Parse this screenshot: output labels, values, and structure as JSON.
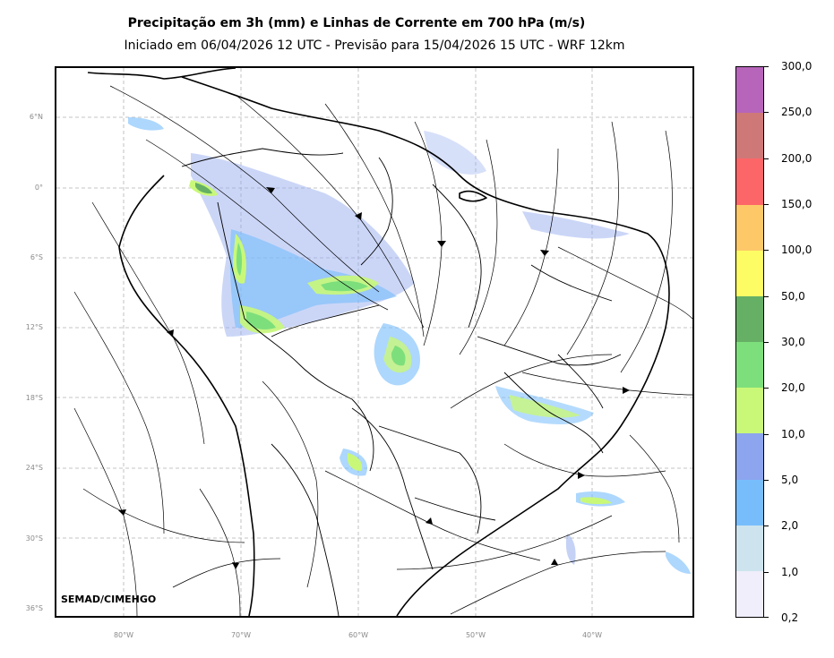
{
  "title": "Precipitação em 3h (mm) e Linhas de Corrente em 700 hPa (m/s)",
  "subtitle": "Iniciado em 06/04/2026 12 UTC - Previsão para 15/04/2026 15 UTC - WRF 12km",
  "credit": "SEMAD/CIMEHGO",
  "lat_labels": [
    "6°N",
    "0°",
    "6°S",
    "12°S",
    "18°S",
    "24°S",
    "30°S",
    "36°S"
  ],
  "lon_labels": [
    "80°W",
    "70°W",
    "60°W",
    "50°W",
    "40°W"
  ],
  "colorbar": {
    "levels": [
      "0,2",
      "1,0",
      "2,0",
      "5,0",
      "10,0",
      "20,0",
      "30,0",
      "50,0",
      "100,0",
      "150,0",
      "200,0",
      "250,0",
      "300,0"
    ],
    "colors": [
      "#efeefa",
      "#cde4ee",
      "#77bdfc",
      "#8ca5ee",
      "#c9f879",
      "#7ddf7c",
      "#66b066",
      "#fdfc65",
      "#fdc868",
      "#fd6668",
      "#cf7878",
      "#b665ba"
    ]
  }
}
